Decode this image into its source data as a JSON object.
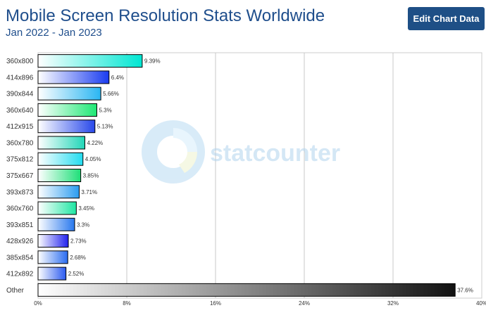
{
  "header": {
    "title": "Mobile Screen Resolution Stats Worldwide",
    "subtitle": "Jan 2022 - Jan 2023",
    "edit_button_label": "Edit Chart Data"
  },
  "watermark": {
    "text": "statcounter"
  },
  "colors": {
    "title": "#1f4e8c",
    "button_bg": "#1e4f86",
    "gridline": "#c8c8c8",
    "bar_outline": "#000000"
  },
  "chart_data": {
    "type": "bar",
    "orientation": "horizontal",
    "categories": [
      "360x800",
      "414x896",
      "390x844",
      "360x640",
      "412x915",
      "360x780",
      "375x812",
      "375x667",
      "393x873",
      "360x760",
      "393x851",
      "428x926",
      "385x854",
      "412x892",
      "Other"
    ],
    "values": [
      9.39,
      6.4,
      5.66,
      5.3,
      5.13,
      4.22,
      4.05,
      3.85,
      3.71,
      3.45,
      3.3,
      2.73,
      2.68,
      2.52,
      37.6
    ],
    "value_labels": [
      "9.39%",
      "6.4%",
      "5.66%",
      "5.3%",
      "5.13%",
      "4.22%",
      "4.05%",
      "3.85%",
      "3.71%",
      "3.45%",
      "3.3%",
      "2.73%",
      "2.68%",
      "2.52%",
      "37.6%"
    ],
    "bar_colors": [
      "#00e6d2",
      "#1a3cf0",
      "#2ab6f2",
      "#1ee874",
      "#2848ea",
      "#22d6b8",
      "#22dcf0",
      "#1edf78",
      "#2a9cf0",
      "#1ee6a2",
      "#2878ee",
      "#2222ee",
      "#2a6cf0",
      "#2a5af0",
      "#111111"
    ],
    "xticks": [
      0,
      8,
      16,
      24,
      32,
      40
    ],
    "xtick_labels": [
      "0%",
      "8%",
      "16%",
      "24%",
      "32%",
      "40%"
    ],
    "xlim": [
      0,
      40
    ],
    "grid": true,
    "title": "Mobile Screen Resolution Stats Worldwide",
    "subtitle": "Jan 2022 - Jan 2023"
  }
}
